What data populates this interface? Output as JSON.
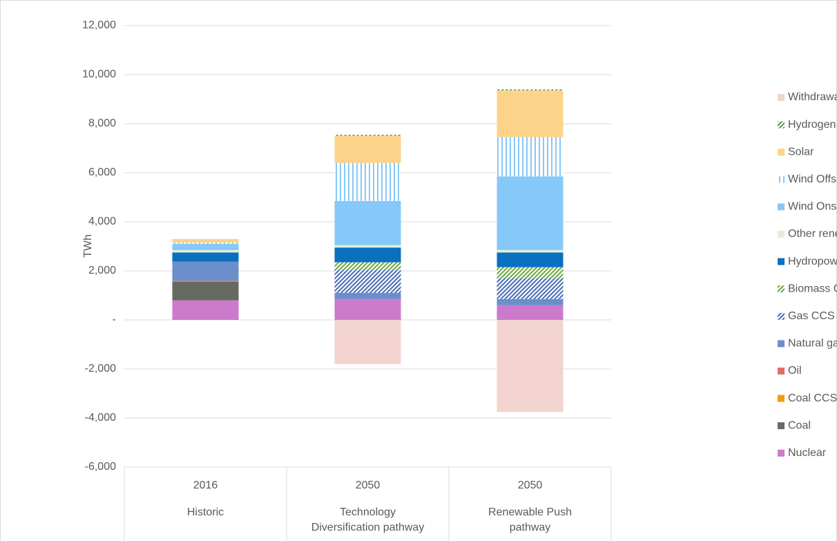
{
  "chart_data": {
    "type": "stacked_bar",
    "y_label": "TWh",
    "categories": [
      "2016",
      "2050",
      "2050"
    ],
    "category_groups": [
      "Historic",
      "Technology Diversification pathway",
      "Renewable Push pathway"
    ],
    "ylim": [
      -6000,
      12000
    ],
    "yticks": [
      {
        "value": -6000,
        "label": "-6,000"
      },
      {
        "value": -4000,
        "label": "-4,000"
      },
      {
        "value": -2000,
        "label": "-2,000"
      },
      {
        "value": 0,
        "label": "-"
      },
      {
        "value": 2000,
        "label": "2,000"
      },
      {
        "value": 4000,
        "label": "4,000"
      },
      {
        "value": 6000,
        "label": "6,000"
      },
      {
        "value": 8000,
        "label": "8,000"
      },
      {
        "value": 10000,
        "label": "10,000"
      },
      {
        "value": 12000,
        "label": "12,000"
      }
    ],
    "grid": true,
    "legend": "right",
    "series": [
      {
        "name": "Nuclear",
        "color": "#cc7acc",
        "values": [
          800,
          850,
          600
        ]
      },
      {
        "name": "Coal",
        "color": "#666a61",
        "values": [
          750,
          0,
          0
        ]
      },
      {
        "name": "Coal CCS",
        "color": "#f29b0c",
        "values": [
          0,
          0,
          0
        ]
      },
      {
        "name": "Oil",
        "color": "#e06f66",
        "values": [
          50,
          0,
          0
        ]
      },
      {
        "name": "Natural gas",
        "color": "#6b8fcb",
        "values": [
          780,
          250,
          250
        ]
      },
      {
        "name": "Gas CCS",
        "color": "#4f73b8",
        "pattern": "diagonal",
        "values": [
          0,
          950,
          850
        ]
      },
      {
        "name": "Biomass CCS",
        "color": "#70ad47",
        "pattern": "diagonal",
        "values": [
          0,
          300,
          450
        ]
      },
      {
        "name": "Hydropower",
        "color": "#0a70c0",
        "values": [
          370,
          600,
          600
        ]
      },
      {
        "name": "Other renewables",
        "color": "#e2efda",
        "values": [
          100,
          100,
          100
        ]
      },
      {
        "name": "Wind Onshore",
        "color": "#86c8f8",
        "values": [
          250,
          1800,
          3000
        ]
      },
      {
        "name": "Wind Offshore",
        "color": "#86c8f8",
        "pattern": "vertical",
        "values": [
          50,
          1550,
          1600
        ]
      },
      {
        "name": "Solar",
        "color": "#fdd38a",
        "values": [
          150,
          1100,
          1900
        ]
      },
      {
        "name": "Hydrogen",
        "color": "#5c9e4a",
        "pattern": "diagonal",
        "values": [
          0,
          50,
          50
        ]
      },
      {
        "name": "Withdrawal for electrolysis",
        "color": "#f2d3cf",
        "values": [
          0,
          -1800,
          -3750
        ]
      }
    ]
  }
}
